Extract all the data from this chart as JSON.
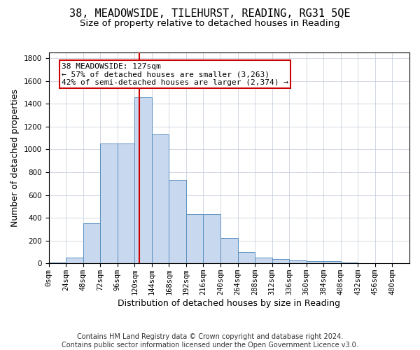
{
  "title": "38, MEADOWSIDE, TILEHURST, READING, RG31 5QE",
  "subtitle": "Size of property relative to detached houses in Reading",
  "xlabel": "Distribution of detached houses by size in Reading",
  "ylabel": "Number of detached properties",
  "bin_labels": [
    "0sqm",
    "24sqm",
    "48sqm",
    "72sqm",
    "96sqm",
    "120sqm",
    "144sqm",
    "168sqm",
    "192sqm",
    "216sqm",
    "240sqm",
    "264sqm",
    "288sqm",
    "312sqm",
    "336sqm",
    "360sqm",
    "384sqm",
    "408sqm",
    "432sqm",
    "456sqm",
    "480sqm"
  ],
  "bar_heights": [
    5,
    50,
    350,
    1050,
    1050,
    1460,
    1130,
    730,
    430,
    430,
    220,
    100,
    50,
    40,
    25,
    20,
    20,
    5,
    0,
    0,
    0
  ],
  "bin_edges": [
    0,
    24,
    48,
    72,
    96,
    120,
    144,
    168,
    192,
    216,
    240,
    264,
    288,
    312,
    336,
    360,
    384,
    408,
    432,
    456,
    480,
    504
  ],
  "bar_color": "#c8d8ee",
  "bar_edge_color": "#5a8fc0",
  "property_size": 127,
  "property_line_color": "#cc0000",
  "annotation_line1": "38 MEADOWSIDE: 127sqm",
  "annotation_line2": "← 57% of detached houses are smaller (3,263)",
  "annotation_line3": "42% of semi-detached houses are larger (2,374) →",
  "annotation_box_color": "#ffffff",
  "annotation_box_edge": "#cc0000",
  "ylim": [
    0,
    1850
  ],
  "yticks": [
    0,
    200,
    400,
    600,
    800,
    1000,
    1200,
    1400,
    1600,
    1800
  ],
  "footer_line1": "Contains HM Land Registry data © Crown copyright and database right 2024.",
  "footer_line2": "Contains public sector information licensed under the Open Government Licence v3.0.",
  "background_color": "#ffffff",
  "grid_color": "#c0c8d8",
  "title_fontsize": 11,
  "subtitle_fontsize": 9.5,
  "axis_label_fontsize": 9,
  "tick_fontsize": 7.5,
  "annotation_fontsize": 8,
  "footer_fontsize": 7
}
